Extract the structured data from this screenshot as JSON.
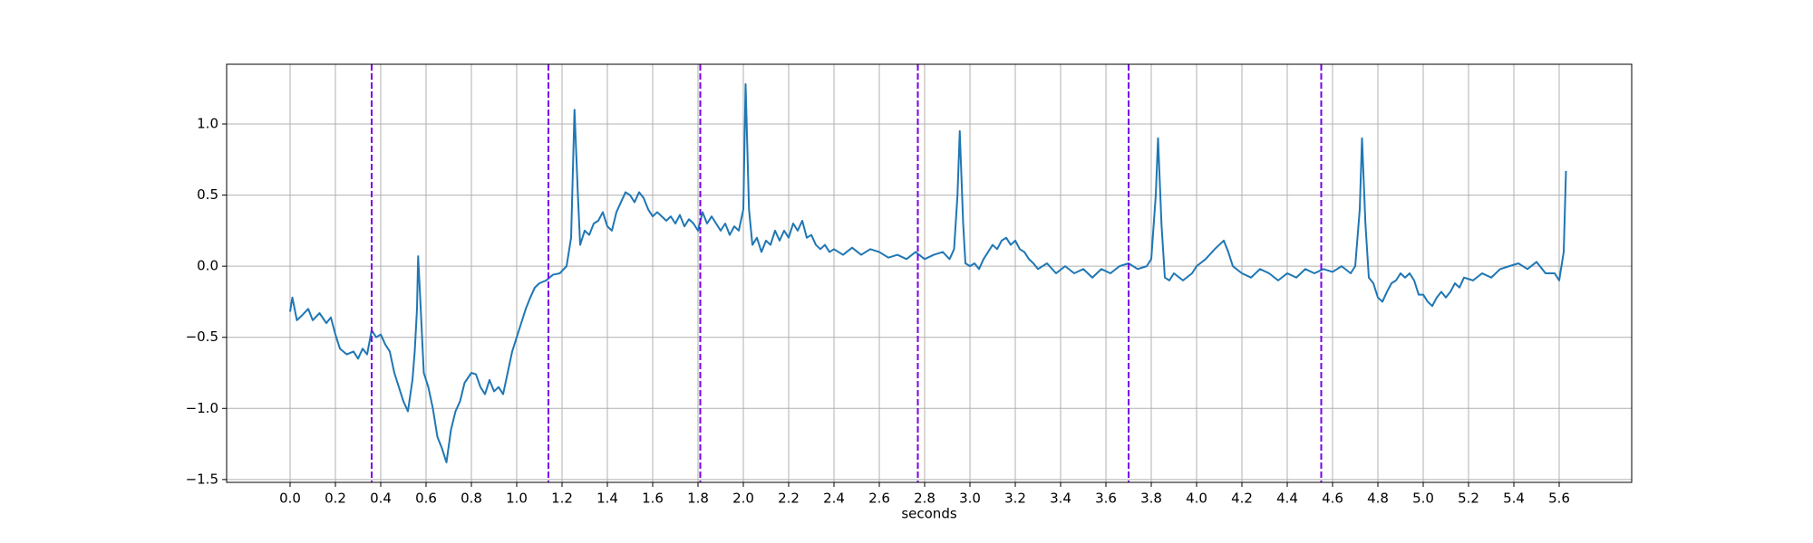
{
  "chart_data": {
    "type": "line",
    "x_label": "seconds",
    "xlim": [
      -0.28,
      5.92
    ],
    "ylim": [
      -1.52,
      1.42
    ],
    "grid": true,
    "xticks": [
      {
        "value": 0,
        "label": "0.0"
      },
      0.2,
      0.4,
      0.6,
      0.8,
      {
        "value": 1,
        "label": "1.0"
      },
      1.2,
      1.4,
      1.6,
      1.8,
      {
        "value": 2,
        "label": "2.0"
      },
      2.2,
      2.4,
      2.6,
      2.8,
      {
        "value": 3,
        "label": "3.0"
      },
      3.2,
      3.4,
      3.6,
      3.8,
      {
        "value": 4,
        "label": "4.0"
      },
      4.2,
      4.4,
      4.6,
      4.8,
      {
        "value": 5,
        "label": "5.0"
      },
      5.2,
      5.4,
      5.6
    ],
    "yticks": [
      {
        "value": -1.5,
        "label": "−1.5"
      },
      {
        "value": -1,
        "label": "−1.0"
      },
      {
        "value": -0.5,
        "label": "−0.5"
      },
      {
        "value": 0,
        "label": "0.0"
      },
      0.5,
      {
        "value": 1,
        "label": "1.0"
      }
    ],
    "vlines": {
      "color": "#7a00e8",
      "dashed": true,
      "values": [
        0.36,
        1.14,
        1.81,
        2.77,
        3.7,
        4.55
      ]
    },
    "x": [
      0,
      0.01,
      0.03,
      0.05,
      0.08,
      0.1,
      0.13,
      0.16,
      0.18,
      0.2,
      0.22,
      0.25,
      0.28,
      0.3,
      0.32,
      0.34,
      0.36,
      0.38,
      0.4,
      0.42,
      0.44,
      0.46,
      0.48,
      0.5,
      0.52,
      0.54,
      0.55,
      0.56,
      0.565,
      0.575,
      0.59,
      0.61,
      0.63,
      0.65,
      0.67,
      0.69,
      0.71,
      0.73,
      0.75,
      0.77,
      0.8,
      0.82,
      0.84,
      0.86,
      0.88,
      0.9,
      0.92,
      0.94,
      0.96,
      0.98,
      1,
      1.02,
      1.04,
      1.06,
      1.08,
      1.1,
      1.13,
      1.16,
      1.19,
      1.22,
      1.24,
      1.255,
      1.27,
      1.28,
      1.3,
      1.32,
      1.34,
      1.36,
      1.38,
      1.4,
      1.42,
      1.44,
      1.46,
      1.48,
      1.5,
      1.52,
      1.54,
      1.56,
      1.58,
      1.6,
      1.62,
      1.64,
      1.66,
      1.68,
      1.7,
      1.72,
      1.74,
      1.76,
      1.78,
      1.8,
      1.82,
      1.84,
      1.86,
      1.88,
      1.9,
      1.92,
      1.94,
      1.96,
      1.98,
      2,
      2.01,
      2.025,
      2.04,
      2.06,
      2.08,
      2.1,
      2.12,
      2.14,
      2.16,
      2.18,
      2.2,
      2.22,
      2.24,
      2.26,
      2.28,
      2.3,
      2.32,
      2.34,
      2.36,
      2.38,
      2.4,
      2.44,
      2.48,
      2.52,
      2.56,
      2.6,
      2.64,
      2.68,
      2.72,
      2.76,
      2.8,
      2.84,
      2.88,
      2.91,
      2.93,
      2.945,
      2.955,
      2.97,
      2.98,
      3,
      3.02,
      3.04,
      3.06,
      3.08,
      3.1,
      3.12,
      3.14,
      3.16,
      3.18,
      3.2,
      3.22,
      3.24,
      3.26,
      3.28,
      3.3,
      3.34,
      3.38,
      3.42,
      3.46,
      3.5,
      3.54,
      3.58,
      3.62,
      3.66,
      3.7,
      3.74,
      3.78,
      3.8,
      3.82,
      3.83,
      3.845,
      3.86,
      3.88,
      3.9,
      3.94,
      3.98,
      4,
      4.04,
      4.08,
      4.1,
      4.12,
      4.14,
      4.16,
      4.2,
      4.24,
      4.28,
      4.32,
      4.36,
      4.4,
      4.44,
      4.48,
      4.52,
      4.56,
      4.6,
      4.64,
      4.68,
      4.7,
      4.72,
      4.73,
      4.745,
      4.76,
      4.78,
      4.8,
      4.82,
      4.84,
      4.86,
      4.88,
      4.9,
      4.92,
      4.94,
      4.96,
      4.98,
      5,
      5.02,
      5.04,
      5.06,
      5.08,
      5.1,
      5.12,
      5.14,
      5.16,
      5.18,
      5.22,
      5.26,
      5.3,
      5.34,
      5.38,
      5.42,
      5.46,
      5.5,
      5.54,
      5.58,
      5.6,
      5.62,
      5.63
    ],
    "series": [
      {
        "color": "#1f77b4",
        "values": [
          -0.32,
          -0.22,
          -0.38,
          -0.35,
          -0.3,
          -0.38,
          -0.33,
          -0.4,
          -0.36,
          -0.48,
          -0.58,
          -0.62,
          -0.6,
          -0.65,
          -0.58,
          -0.62,
          -0.45,
          -0.5,
          -0.48,
          -0.55,
          -0.6,
          -0.75,
          -0.85,
          -0.95,
          -1.02,
          -0.8,
          -0.6,
          -0.3,
          0.07,
          -0.25,
          -0.75,
          -0.85,
          -1,
          -1.2,
          -1.28,
          -1.38,
          -1.15,
          -1.02,
          -0.95,
          -0.82,
          -0.75,
          -0.76,
          -0.85,
          -0.9,
          -0.8,
          -0.88,
          -0.85,
          -0.9,
          -0.75,
          -0.6,
          -0.5,
          -0.4,
          -0.3,
          -0.22,
          -0.15,
          -0.12,
          -0.1,
          -0.06,
          -0.05,
          0,
          0.2,
          1.1,
          0.5,
          0.15,
          0.25,
          0.22,
          0.3,
          0.32,
          0.38,
          0.28,
          0.25,
          0.38,
          0.45,
          0.52,
          0.5,
          0.45,
          0.52,
          0.48,
          0.4,
          0.35,
          0.38,
          0.35,
          0.32,
          0.35,
          0.3,
          0.36,
          0.28,
          0.33,
          0.3,
          0.25,
          0.38,
          0.3,
          0.35,
          0.3,
          0.25,
          0.3,
          0.22,
          0.28,
          0.25,
          0.4,
          1.28,
          0.4,
          0.15,
          0.2,
          0.1,
          0.18,
          0.15,
          0.25,
          0.18,
          0.25,
          0.2,
          0.3,
          0.25,
          0.32,
          0.2,
          0.22,
          0.15,
          0.12,
          0.15,
          0.1,
          0.12,
          0.08,
          0.13,
          0.08,
          0.12,
          0.1,
          0.06,
          0.08,
          0.05,
          0.1,
          0.05,
          0.08,
          0.1,
          0.05,
          0.12,
          0.5,
          0.95,
          0.3,
          0.02,
          0,
          0.02,
          -0.02,
          0.05,
          0.1,
          0.15,
          0.12,
          0.18,
          0.2,
          0.15,
          0.18,
          0.12,
          0.1,
          0.05,
          0.02,
          -0.02,
          0.02,
          -0.05,
          0,
          -0.05,
          -0.02,
          -0.08,
          -0.02,
          -0.05,
          0,
          0.02,
          -0.02,
          0,
          0.05,
          0.5,
          0.9,
          0.3,
          -0.08,
          -0.1,
          -0.05,
          -0.1,
          -0.05,
          0,
          0.05,
          0.12,
          0.15,
          0.18,
          0.1,
          0,
          -0.05,
          -0.08,
          -0.02,
          -0.05,
          -0.1,
          -0.05,
          -0.08,
          -0.02,
          -0.05,
          -0.02,
          -0.04,
          0,
          -0.05,
          0,
          0.4,
          0.9,
          0.3,
          -0.08,
          -0.12,
          -0.22,
          -0.25,
          -0.18,
          -0.12,
          -0.1,
          -0.05,
          -0.08,
          -0.05,
          -0.1,
          -0.2,
          -0.2,
          -0.25,
          -0.28,
          -0.22,
          -0.18,
          -0.22,
          -0.18,
          -0.12,
          -0.15,
          -0.08,
          -0.1,
          -0.05,
          -0.08,
          -0.02,
          0,
          0.02,
          -0.02,
          0.03,
          -0.05,
          -0.05,
          -0.1,
          0.1,
          0.67
        ]
      }
    ]
  }
}
